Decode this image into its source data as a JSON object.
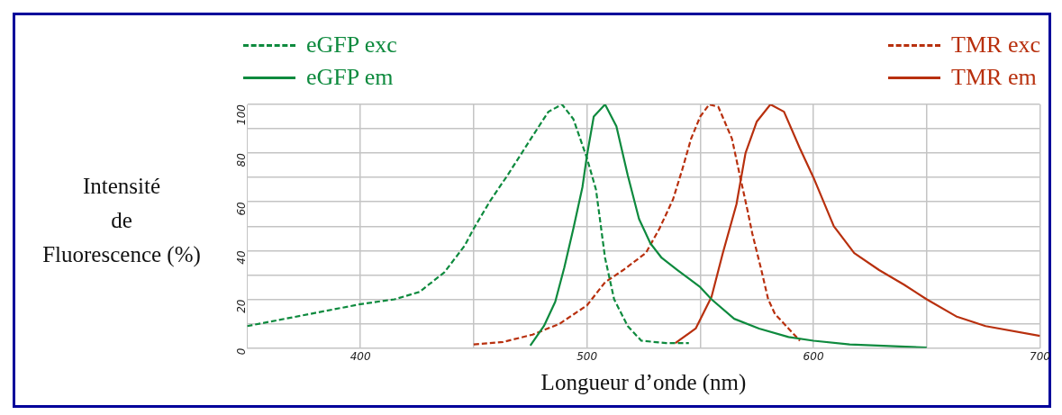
{
  "chart_data": {
    "type": "line",
    "xlabel": "Longueur d’onde (nm)",
    "ylabel": "Intensité\nde\nFluorescence (%)",
    "xlim": [
      350,
      700
    ],
    "xticks": [
      400,
      {
        "value": 450,
        "label": null
      },
      500,
      {
        "value": 550,
        "label": null
      },
      600,
      {
        "value": 650,
        "label": null
      },
      700
    ],
    "ylim": [
      0,
      100
    ],
    "yticks": [
      0,
      {
        "value": 10,
        "label": null
      },
      20,
      {
        "value": 30,
        "label": null
      },
      40,
      {
        "value": 50,
        "label": null
      },
      60,
      {
        "value": 70,
        "label": null
      },
      80,
      {
        "value": 90,
        "label": null
      },
      100
    ],
    "grid": true,
    "legend": "top",
    "marker": "none",
    "series": [
      {
        "name": "eGFP exc",
        "color": "#0e8a3e",
        "line_style": "dashed",
        "x": [
          350,
          400,
          415,
          426,
          437,
          446,
          450,
          457,
          465,
          476,
          483,
          489,
          494,
          500,
          504,
          508,
          512,
          518,
          524,
          535,
          545
        ],
        "values": [
          9,
          18,
          20,
          23,
          31,
          42,
          49,
          60,
          71,
          87,
          97,
          100,
          94,
          78,
          65,
          37,
          20,
          9,
          3,
          2,
          2
        ]
      },
      {
        "name": "eGFP em",
        "color": "#0e8a3e",
        "line_style": "solid",
        "x": [
          475,
          481,
          486,
          490,
          494,
          498,
          500,
          503,
          508,
          513,
          518,
          523,
          528,
          533,
          540,
          550,
          555,
          565,
          576,
          589,
          600,
          616,
          650
        ],
        "values": [
          1,
          9,
          19,
          33,
          49,
          66,
          79,
          95,
          100,
          91,
          71,
          53,
          43,
          37,
          32,
          25,
          20,
          12,
          8,
          4.5,
          3,
          1.5,
          0.2
        ]
      },
      {
        "name": "TMR exc",
        "color": "#b8300e",
        "line_style": "dashed",
        "x": [
          450,
          463,
          476,
          488,
          500,
          508,
          516,
          526,
          532,
          538,
          542,
          546,
          550,
          554,
          558,
          564,
          567,
          571,
          573,
          577,
          580,
          583,
          589,
          594
        ],
        "values": [
          1.5,
          2.5,
          5.5,
          10,
          17.5,
          27,
          32,
          39,
          49,
          61,
          73,
          86,
          95,
          100,
          99,
          86,
          73,
          56,
          47,
          32,
          20,
          14,
          8,
          3
        ]
      },
      {
        "name": "TMR em",
        "color": "#b8300e",
        "line_style": "solid",
        "x": [
          539,
          548,
          555,
          560,
          566,
          570,
          575,
          581,
          587,
          594,
          600,
          609,
          618,
          629,
          640,
          650,
          663,
          676,
          700
        ],
        "values": [
          2,
          8,
          21,
          39,
          59,
          80,
          93,
          100,
          97,
          82,
          70,
          50,
          39,
          32,
          26,
          20,
          13,
          9,
          5
        ]
      }
    ]
  }
}
